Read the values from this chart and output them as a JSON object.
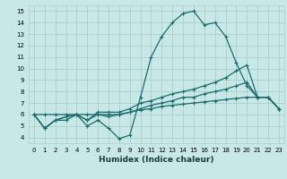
{
  "title": "",
  "xlabel": "Humidex (Indice chaleur)",
  "xlim": [
    -0.5,
    23.5
  ],
  "ylim": [
    3.5,
    15.5
  ],
  "yticks": [
    4,
    5,
    6,
    7,
    8,
    9,
    10,
    11,
    12,
    13,
    14,
    15
  ],
  "xticks": [
    0,
    1,
    2,
    3,
    4,
    5,
    6,
    7,
    8,
    9,
    10,
    11,
    12,
    13,
    14,
    15,
    16,
    17,
    18,
    19,
    20,
    21,
    22,
    23
  ],
  "bg_color": "#c8e8e8",
  "grid_color": "#aacece",
  "line_color": "#1a6b6b",
  "line1": [
    6.0,
    4.8,
    5.5,
    5.5,
    6.0,
    5.0,
    5.5,
    4.8,
    3.9,
    4.2,
    7.5,
    11.0,
    12.8,
    14.0,
    14.8,
    15.0,
    13.8,
    14.0,
    12.8,
    10.5,
    8.5,
    7.5,
    7.5,
    6.5
  ],
  "line2": [
    6.0,
    4.8,
    5.5,
    5.8,
    6.0,
    5.5,
    6.2,
    6.2,
    6.2,
    6.5,
    7.0,
    7.2,
    7.5,
    7.8,
    8.0,
    8.2,
    8.5,
    8.8,
    9.2,
    9.8,
    10.3,
    7.5,
    7.5,
    6.5
  ],
  "line3": [
    6.0,
    4.8,
    5.5,
    5.8,
    6.0,
    5.5,
    6.0,
    5.8,
    6.0,
    6.2,
    6.5,
    6.8,
    7.0,
    7.2,
    7.5,
    7.5,
    7.8,
    8.0,
    8.2,
    8.5,
    8.8,
    7.5,
    7.5,
    6.5
  ],
  "line4": [
    6.0,
    6.0,
    6.0,
    6.0,
    6.0,
    6.0,
    6.0,
    6.0,
    6.0,
    6.2,
    6.4,
    6.5,
    6.7,
    6.8,
    6.9,
    7.0,
    7.1,
    7.2,
    7.3,
    7.4,
    7.5,
    7.5,
    7.5,
    6.5
  ]
}
